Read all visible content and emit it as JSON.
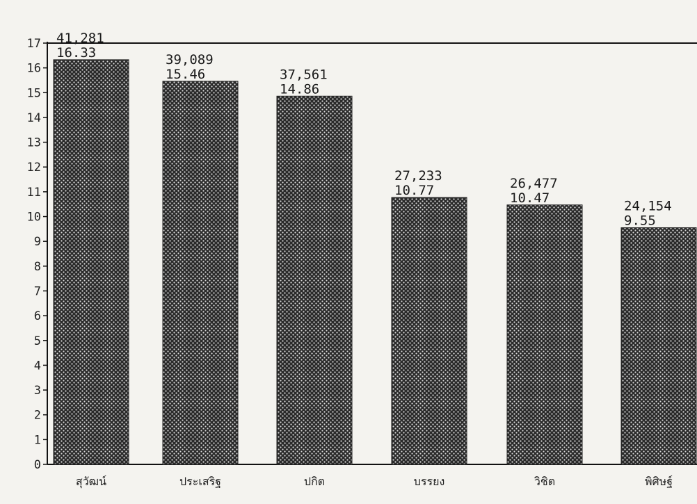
{
  "chart_data": {
    "type": "bar",
    "categories": [
      "สุวัฒน์",
      "ประเสริฐ",
      "ปกิต",
      "บรรยง",
      "วิชิต",
      "พิศิษฐ์"
    ],
    "values": [
      16.33,
      15.46,
      14.86,
      10.77,
      10.47,
      9.55
    ],
    "counts": [
      "41,281",
      "39,089",
      "37,561",
      "27,233",
      "26,477",
      "24,154"
    ],
    "value_labels": [
      "16.33",
      "15.46",
      "14.86",
      "10.77",
      "10.47",
      "9.55"
    ],
    "y_ticks": [
      "0",
      "1",
      "2",
      "3",
      "4",
      "5",
      "6",
      "7",
      "8",
      "9",
      "10",
      "11",
      "12",
      "13",
      "14",
      "15",
      "16",
      "17"
    ],
    "ylim": [
      0,
      17
    ],
    "title": "",
    "xlabel": "",
    "ylabel": "",
    "grid": false,
    "legend": "none",
    "colors": {
      "bar": "#2a2a2a",
      "axis": "#111111",
      "background": "#f4f3ef"
    }
  }
}
